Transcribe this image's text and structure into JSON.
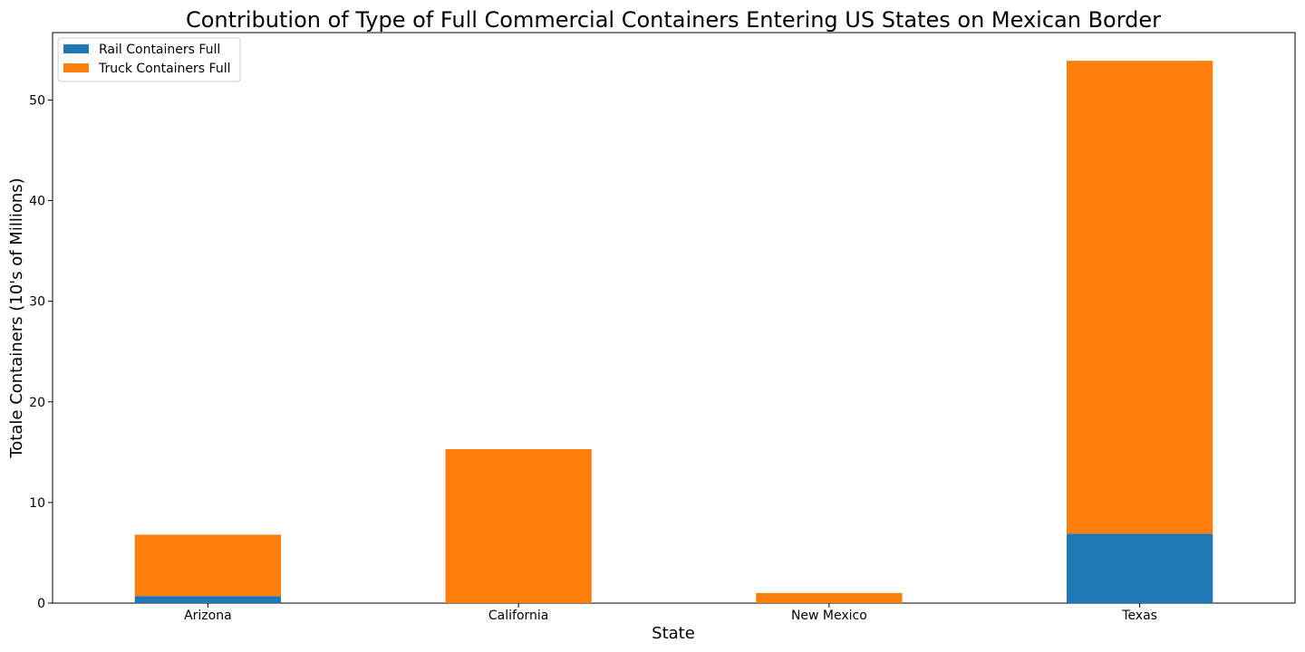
{
  "chart_data": {
    "type": "bar",
    "stacked": true,
    "title": "Contribution of Type of Full Commercial Containers Entering US States on Mexican Border",
    "xlabel": "State",
    "ylabel": "Totale Containers (10's of Millions)",
    "categories": [
      "Arizona",
      "California",
      "New Mexico",
      "Texas"
    ],
    "series": [
      {
        "name": "Rail Containers Full",
        "color": "#1f77b4",
        "values": [
          0.7,
          0.0,
          0.0,
          6.9
        ]
      },
      {
        "name": "Truck Containers Full",
        "color": "#ff7f0e",
        "values": [
          6.1,
          15.3,
          1.0,
          47.0
        ]
      }
    ],
    "ylim": [
      0,
      56.7
    ],
    "yticks": [
      0,
      10,
      20,
      30,
      40,
      50
    ],
    "grid": false,
    "legend_position": "top-left"
  }
}
